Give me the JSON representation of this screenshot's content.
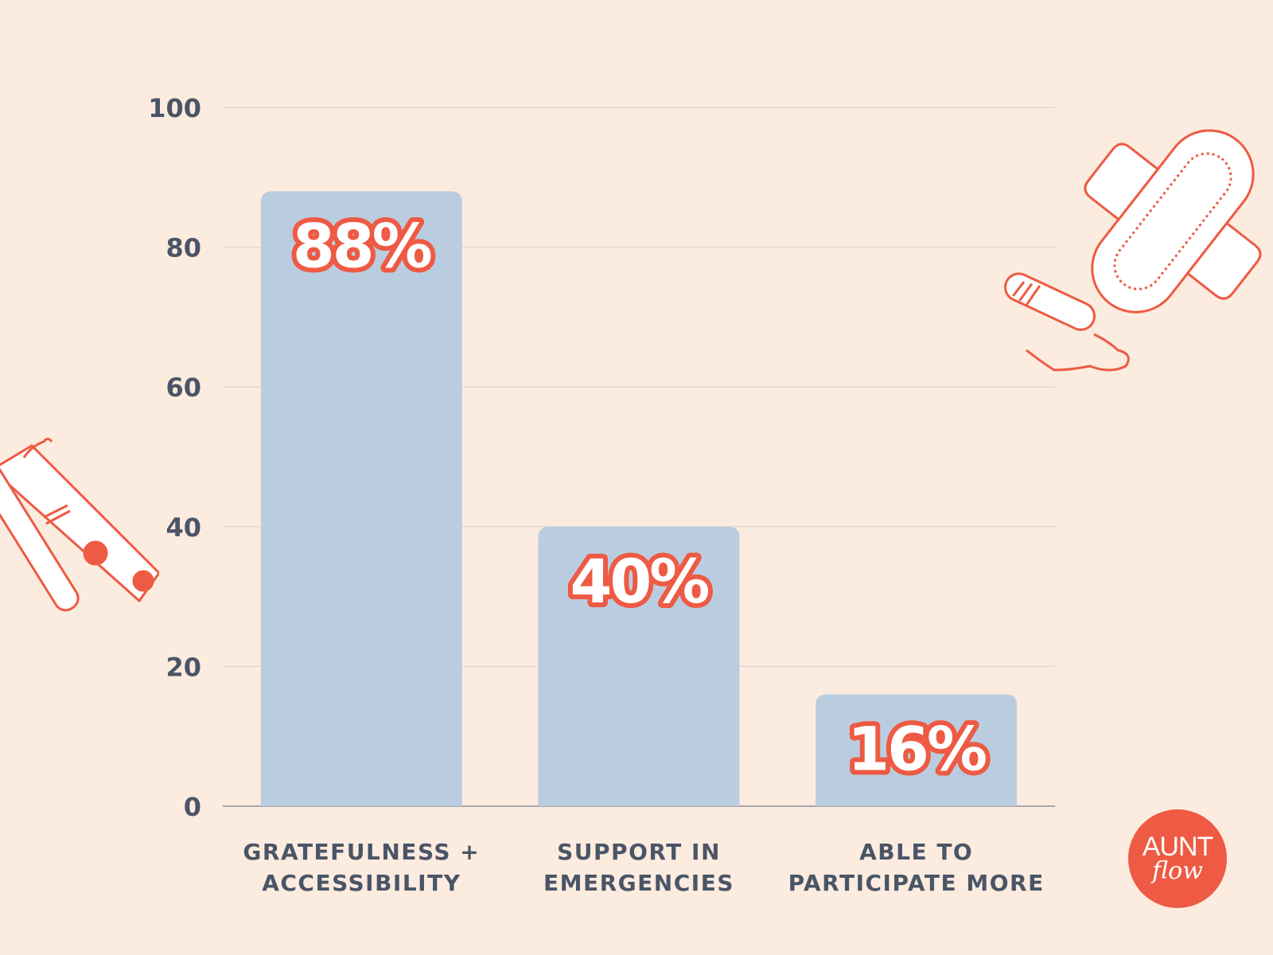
{
  "chart_data": {
    "type": "bar",
    "categories": [
      "GRATEFULNESS + ACCESSIBILITY",
      "SUPPORT IN EMERGENCIES",
      "ABLE TO PARTICIPATE MORE"
    ],
    "category_lines": [
      [
        "GRATEFULNESS +",
        "ACCESSIBILITY"
      ],
      [
        "SUPPORT IN",
        "EMERGENCIES"
      ],
      [
        "ABLE TO",
        "PARTICIPATE MORE"
      ]
    ],
    "values": [
      88,
      40,
      16
    ],
    "data_labels": [
      "88%",
      "40%",
      "16%"
    ],
    "yticks": [
      0,
      20,
      40,
      60,
      80,
      100
    ],
    "ylim": [
      0,
      100
    ],
    "grid": true,
    "title": "",
    "xlabel": "",
    "ylabel": "",
    "colors": {
      "bar": "#bacde0",
      "label_fill": "#ffffff",
      "label_stroke": "#ee5a43",
      "tick_text": "#4a5566",
      "grid": "#d9cfc8",
      "background": "#fcebdf"
    }
  },
  "logo": {
    "top": "AUNT",
    "bottom": "flow",
    "color": "#ee5a43"
  },
  "decorations": {
    "icons": [
      "maxi-pad-icon",
      "tampon-icon"
    ]
  }
}
